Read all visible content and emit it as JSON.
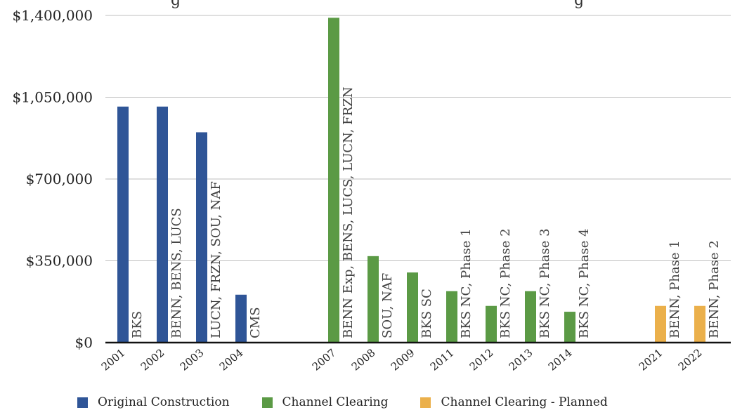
{
  "chart_data": {
    "type": "bar",
    "title_fragments": [
      "g",
      "g"
    ],
    "ylim": [
      0,
      1400000
    ],
    "yticks": [
      "$0",
      "$350,000",
      "$700,000",
      "$1,050,000",
      "$1,400,000"
    ],
    "grid": true,
    "legend_placement": "bottom",
    "series": [
      {
        "name": "Original Construction",
        "color": "#2f5597"
      },
      {
        "name": "Channel Clearing",
        "color": "#5b9a45"
      },
      {
        "name": "Channel Clearing - Planned",
        "color": "#ebb04b"
      }
    ],
    "bars": [
      {
        "year": "2001",
        "value": 1010000,
        "series": 0,
        "label": "BKS"
      },
      {
        "year": "2002",
        "value": 1010000,
        "series": 0,
        "label": "BENN, BENS, LUCS"
      },
      {
        "year": "2003",
        "value": 900000,
        "series": 0,
        "label": "LUCN, FRZN, SOU, NAF"
      },
      {
        "year": "2004",
        "value": 205000,
        "series": 0,
        "label": "CMS"
      },
      {
        "year": "2007",
        "value": 1390000,
        "series": 1,
        "label": "BENN Exp, BENS, LUCS, LUCN, FRZN"
      },
      {
        "year": "2008",
        "value": 370000,
        "series": 1,
        "label": "SOU, NAF"
      },
      {
        "year": "2009",
        "value": 300000,
        "series": 1,
        "label": "BKS SC"
      },
      {
        "year": "2011",
        "value": 220000,
        "series": 1,
        "label": "BKS NC, Phase 1"
      },
      {
        "year": "2012",
        "value": 157000,
        "series": 1,
        "label": "BKS NC, Phase 2"
      },
      {
        "year": "2013",
        "value": 220000,
        "series": 1,
        "label": "BKS NC, Phase 3"
      },
      {
        "year": "2014",
        "value": 132000,
        "series": 1,
        "label": "BKS NC, Phase 4"
      },
      {
        "year": "2021",
        "value": 157000,
        "series": 2,
        "label": "BENN, Phase 1"
      },
      {
        "year": "2022",
        "value": 157000,
        "series": 2,
        "label": "BENN, Phase 2"
      }
    ]
  }
}
